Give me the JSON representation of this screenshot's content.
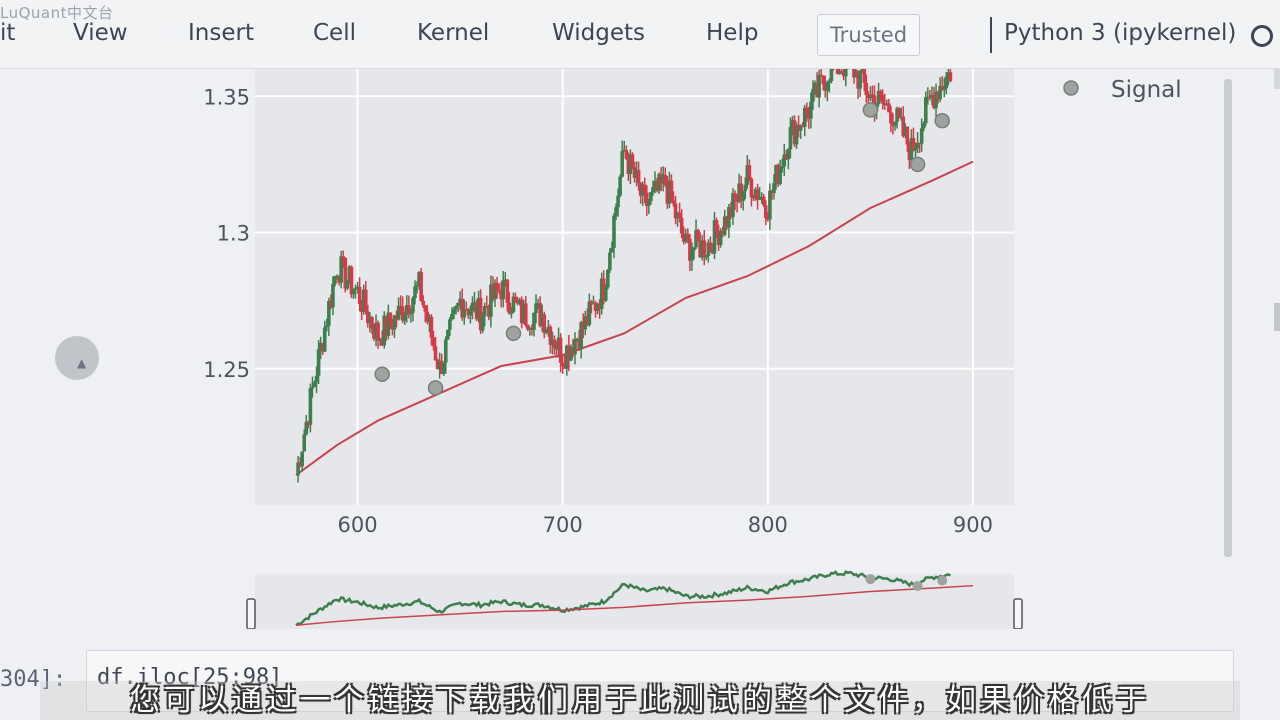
{
  "watermark": "LuQuant中文台",
  "menu": [
    "it",
    "View",
    "Insert",
    "Cell",
    "Kernel",
    "Widgets",
    "Help"
  ],
  "trusted_label": "Trusted",
  "kernel_label": "Python 3 (ipykernel)",
  "legend": {
    "signal_label": "Signal"
  },
  "cell": {
    "prompt": "304]:",
    "code": "df.iloc[25:98]"
  },
  "subtitle": "您可以通过一个链接下载我们用于此测试的整个文件，如果价格低于",
  "colors": {
    "up": "#3f7f4f",
    "down": "#d63a4a",
    "ma": "#c8434f",
    "signal": "#9ea3a0"
  },
  "chart_data": {
    "type": "line",
    "x_ticks": [
      "600",
      "700",
      "800",
      "900"
    ],
    "y_ticks": [
      "1.25",
      "1.3",
      "1.35"
    ],
    "xlim": [
      550,
      920
    ],
    "ylim": [
      1.2,
      1.36
    ],
    "series": [
      {
        "x": [
          570,
          580,
          590,
          600,
          610,
          620,
          630,
          640,
          650,
          660,
          670,
          680,
          690,
          700,
          710,
          720,
          730,
          740,
          750,
          760,
          770,
          780,
          790,
          800,
          810,
          820,
          830,
          840,
          850,
          860,
          870,
          880,
          890
        ],
        "values": [
          1.211,
          1.25,
          1.288,
          1.278,
          1.262,
          1.27,
          1.28,
          1.25,
          1.275,
          1.27,
          1.28,
          1.27,
          1.27,
          1.255,
          1.265,
          1.28,
          1.33,
          1.31,
          1.318,
          1.295,
          1.295,
          1.305,
          1.32,
          1.31,
          1.335,
          1.345,
          1.36,
          1.362,
          1.35,
          1.345,
          1.33,
          1.35,
          1.36
        ]
      },
      {
        "name": "Signal",
        "x": [
          612,
          638,
          676,
          850,
          873,
          885
        ],
        "values": [
          1.248,
          1.243,
          1.263,
          1.345,
          1.325,
          1.341
        ]
      },
      {
        "x": [
          570,
          590,
          610,
          640,
          670,
          700,
          730,
          760,
          790,
          820,
          850,
          880,
          900
        ],
        "values": [
          1.211,
          1.222,
          1.231,
          1.241,
          1.251,
          1.255,
          1.263,
          1.276,
          1.284,
          1.295,
          1.309,
          1.319,
          1.326
        ]
      }
    ]
  }
}
